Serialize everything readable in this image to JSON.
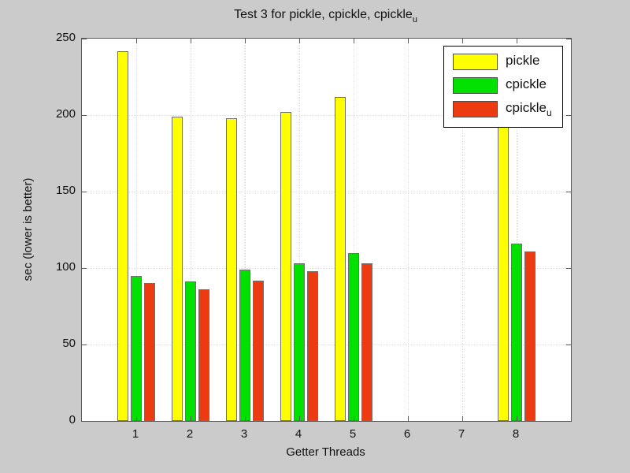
{
  "title": {
    "main": "Test 3 for pickle, cpickle, cpickle",
    "sub": "u"
  },
  "axes": {
    "ylabel": "sec (lower is better)",
    "xlabel": "Getter Threads",
    "yticks": [
      0,
      50,
      100,
      150,
      200,
      250
    ],
    "xticks": [
      1,
      2,
      3,
      4,
      5,
      6,
      7,
      8
    ],
    "xlim": [
      0,
      9
    ],
    "ylim": [
      0,
      250
    ]
  },
  "legend": {
    "position": "upper right",
    "items": [
      {
        "label_main": "pickle",
        "label_sub": ""
      },
      {
        "label_main": "cpickle",
        "label_sub": ""
      },
      {
        "label_main": "cpickle",
        "label_sub": "u"
      }
    ]
  },
  "colors": {
    "figure_bg": "#cbcbcb",
    "plot_bg": "#ffffff",
    "axis": "#5a5a5a",
    "grid": "#dedede",
    "bar_edge": "#6f6f6f",
    "pickle": "#ffff00",
    "cpickle": "#00e100",
    "cpickle_u": "#ee3a10"
  },
  "chart_data": {
    "type": "bar",
    "title": "Test 3 for pickle, cpickle, cpickle_u",
    "xlabel": "Getter Threads",
    "ylabel": "sec (lower is better)",
    "categories": [
      1,
      2,
      3,
      4,
      5,
      6,
      7,
      8
    ],
    "series": [
      {
        "name": "pickle",
        "color": "#ffff00",
        "values": [
          242,
          199,
          198,
          202,
          212,
          null,
          null,
          196
        ]
      },
      {
        "name": "cpickle",
        "color": "#00e100",
        "values": [
          95,
          91,
          99,
          103,
          110,
          null,
          null,
          116
        ]
      },
      {
        "name": "cpickle_u",
        "color": "#ee3a10",
        "values": [
          90,
          86,
          92,
          98,
          103,
          null,
          null,
          111
        ]
      }
    ],
    "notes": "pickle bar at x=8 is partially occluded by the legend; its top is hidden (value estimated)",
    "xlim": [
      0,
      9
    ],
    "ylim": [
      0,
      250
    ],
    "grid": true,
    "legend_position": "upper right"
  }
}
